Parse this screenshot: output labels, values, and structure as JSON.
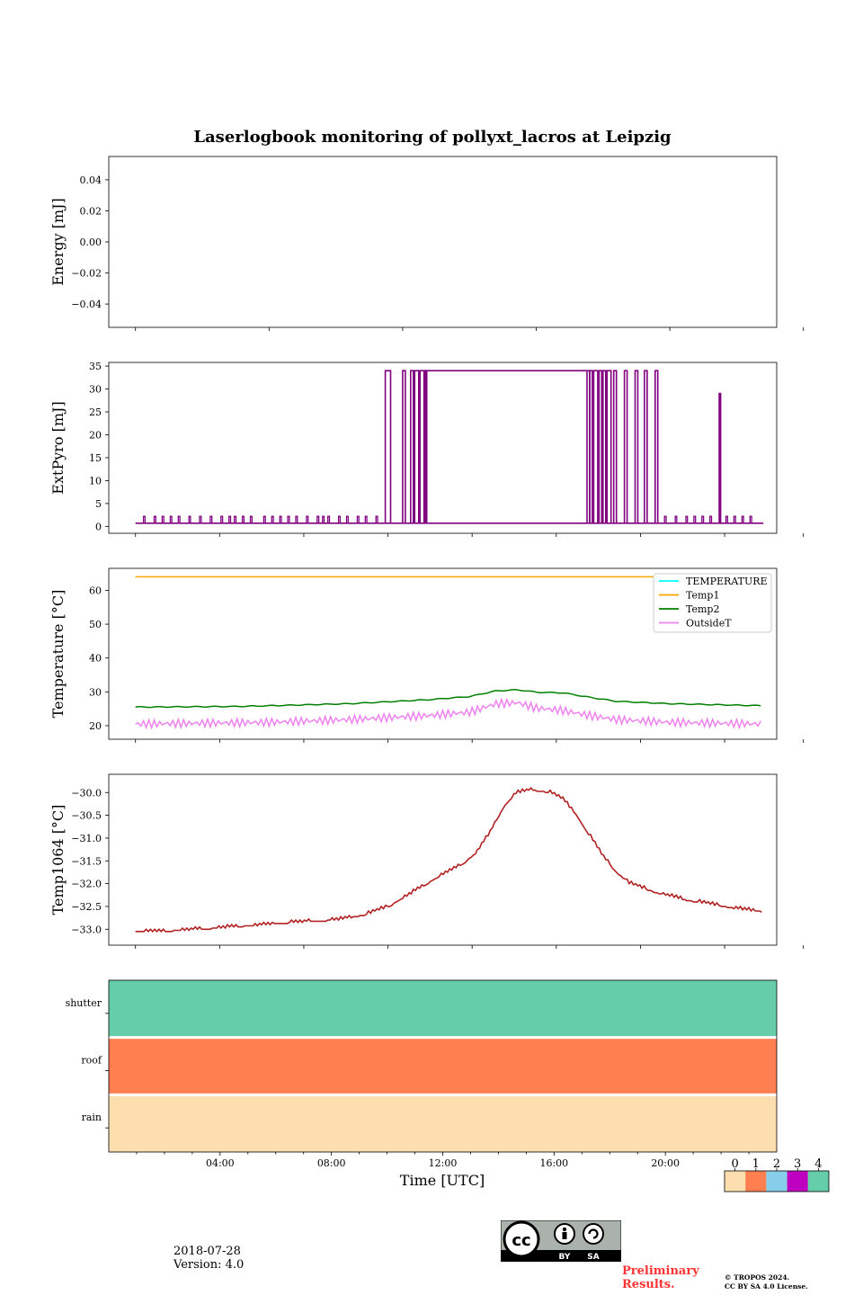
{
  "figure": {
    "title": "Laserlogbook monitoring of pollyxt_lacros at Leipzig",
    "xlabel": "Time [UTC]",
    "date": "2018-07-28",
    "version": "Version: 4.0",
    "preliminary_line1": "Preliminary",
    "preliminary_line2": "Results.",
    "copyright_line1": "© TROPOS 2024.",
    "copyright_line2": "CC BY SA 4.0 License.",
    "cc_badge_text": [
      "BY",
      "SA"
    ]
  },
  "chart_data": [
    {
      "type": "line",
      "panel": "energy",
      "ylabel": "Energy [mJ]",
      "ylim": [
        -0.055,
        0.055
      ],
      "yticks": [
        0.04,
        0.02,
        0.0,
        -0.02,
        -0.04
      ],
      "ytick_labels": [
        "0.04",
        "0.02",
        "0.00",
        "−0.02",
        "−0.04"
      ],
      "series": []
    },
    {
      "type": "line",
      "panel": "extpyro",
      "ylabel": "ExtPyro [mJ]",
      "ylim": [
        -1.5,
        35.8
      ],
      "yticks": [
        0,
        5,
        10,
        15,
        20,
        25,
        30,
        35
      ],
      "ytick_labels": [
        "0",
        "5",
        "10",
        "15",
        "20",
        "25",
        "30",
        "35"
      ],
      "colors": {
        "ExtPyro": "#800080"
      },
      "baseline": 0.7,
      "high": 34.0,
      "high_plateau": [
        10.85,
        16.9
      ],
      "bursts": [
        [
          9.35,
          9.55
        ],
        [
          10.0,
          10.1
        ],
        [
          10.3,
          10.4
        ],
        [
          10.45,
          10.6
        ],
        [
          10.65,
          10.8
        ],
        [
          10.85,
          10.9
        ],
        [
          16.9,
          17.0
        ],
        [
          17.0,
          17.1
        ],
        [
          17.15,
          17.3
        ],
        [
          17.35,
          17.45
        ],
        [
          17.5,
          17.6
        ],
        [
          17.65,
          17.8
        ],
        [
          17.9,
          18.0
        ],
        [
          18.3,
          18.4
        ],
        [
          18.7,
          18.8
        ],
        [
          19.05,
          19.15
        ],
        [
          19.45,
          19.55
        ],
        [
          21.85,
          21.9
        ]
      ],
      "small_spikes_height": 2.2,
      "small_spikes_start": [
        0.3,
        0.7,
        1.0,
        1.3,
        1.6,
        2.0,
        2.4,
        2.8,
        3.2,
        3.5,
        3.7,
        4.0,
        4.3,
        4.8,
        5.1,
        5.4,
        5.7,
        6.0,
        6.4,
        6.8,
        7.0,
        7.2,
        7.6,
        7.9,
        8.3,
        8.6,
        9.0,
        19.8,
        20.2,
        20.6,
        20.9,
        21.2,
        21.5,
        22.1,
        22.4,
        22.7,
        23.0
      ]
    },
    {
      "type": "line",
      "panel": "temperature",
      "ylabel": "Temperature [°C]",
      "ylim": [
        16,
        66.5
      ],
      "yticks": [
        20,
        30,
        40,
        50,
        60
      ],
      "ytick_labels": [
        "20",
        "30",
        "40",
        "50",
        "60"
      ],
      "legend_placement": "upper right",
      "series": [
        {
          "name": "TEMPERATURE",
          "color": "#00ffff",
          "points": []
        },
        {
          "name": "Temp1",
          "color": "#ffa500",
          "points": [
            [
              0,
              64
            ],
            [
              23.5,
              64
            ]
          ]
        },
        {
          "name": "Temp2",
          "color": "#008000",
          "points": [
            [
              0,
              25.5
            ],
            [
              4,
              25.7
            ],
            [
              8,
              26.5
            ],
            [
              11,
              27.7
            ],
            [
              12.5,
              28.6
            ],
            [
              13.5,
              30.3
            ],
            [
              14.3,
              30.6
            ],
            [
              15,
              29.9
            ],
            [
              16,
              29.7
            ],
            [
              17,
              28.4
            ],
            [
              18,
              27.2
            ],
            [
              20,
              26.5
            ],
            [
              23.5,
              25.9
            ]
          ]
        },
        {
          "name": "OutsideT",
          "color": "#ee82ee",
          "points": [
            [
              0,
              20.5
            ],
            [
              5,
              21.0
            ],
            [
              8,
              21.8
            ],
            [
              11,
              23.0
            ],
            [
              12.5,
              24.0
            ],
            [
              13.5,
              26.5
            ],
            [
              14.3,
              26.8
            ],
            [
              15,
              25.2
            ],
            [
              16,
              24.5
            ],
            [
              17,
              23.0
            ],
            [
              18,
              21.8
            ],
            [
              20,
              21.0
            ],
            [
              23.5,
              20.5
            ]
          ]
        }
      ]
    },
    {
      "type": "line",
      "panel": "temp1064",
      "ylabel": "Temp1064 [°C]",
      "ylim": [
        -33.35,
        -29.6
      ],
      "yticks": [
        -30.0,
        -30.5,
        -31.0,
        -31.5,
        -32.0,
        -32.5,
        -33.0
      ],
      "ytick_labels": [
        "−30.0",
        "−30.5",
        "−31.0",
        "−31.5",
        "−32.0",
        "−32.5",
        "−33.0"
      ],
      "colors": {
        "Temp1064": "#b22222"
      },
      "points": [
        [
          0,
          -33.05
        ],
        [
          1.0,
          -33.05
        ],
        [
          2.5,
          -33.0
        ],
        [
          4.5,
          -32.92
        ],
        [
          6.0,
          -32.85
        ],
        [
          7.5,
          -32.8
        ],
        [
          8.5,
          -32.7
        ],
        [
          9.5,
          -32.5
        ],
        [
          10.5,
          -32.15
        ],
        [
          11.5,
          -31.8
        ],
        [
          12.3,
          -31.55
        ],
        [
          12.8,
          -31.3
        ],
        [
          13.3,
          -30.85
        ],
        [
          13.8,
          -30.3
        ],
        [
          14.3,
          -30.0
        ],
        [
          14.8,
          -29.95
        ],
        [
          15.5,
          -30.0
        ],
        [
          16.0,
          -30.15
        ],
        [
          16.5,
          -30.5
        ],
        [
          17.0,
          -30.95
        ],
        [
          17.5,
          -31.4
        ],
        [
          18.0,
          -31.75
        ],
        [
          18.5,
          -32.0
        ],
        [
          19.5,
          -32.2
        ],
        [
          20.5,
          -32.35
        ],
        [
          21.5,
          -32.45
        ],
        [
          22.5,
          -32.55
        ],
        [
          23.5,
          -32.62
        ]
      ]
    },
    {
      "type": "heatmap",
      "panel": "flags",
      "rows": [
        "shutter",
        "roof",
        "rain"
      ],
      "row_values": [
        4,
        1,
        0
      ],
      "xlim": [
        0,
        24
      ],
      "xticks": [
        4,
        8,
        12,
        16,
        20
      ],
      "xtick_labels": [
        "04:00",
        "08:00",
        "12:00",
        "16:00",
        "20:00"
      ],
      "colorbar": {
        "ticks": [
          "0",
          "1",
          "2",
          "3",
          "4"
        ],
        "colors": [
          "#fddfaf",
          "#ff7f50",
          "#87ceeb",
          "#c000c0",
          "#66cdaa"
        ]
      }
    }
  ]
}
